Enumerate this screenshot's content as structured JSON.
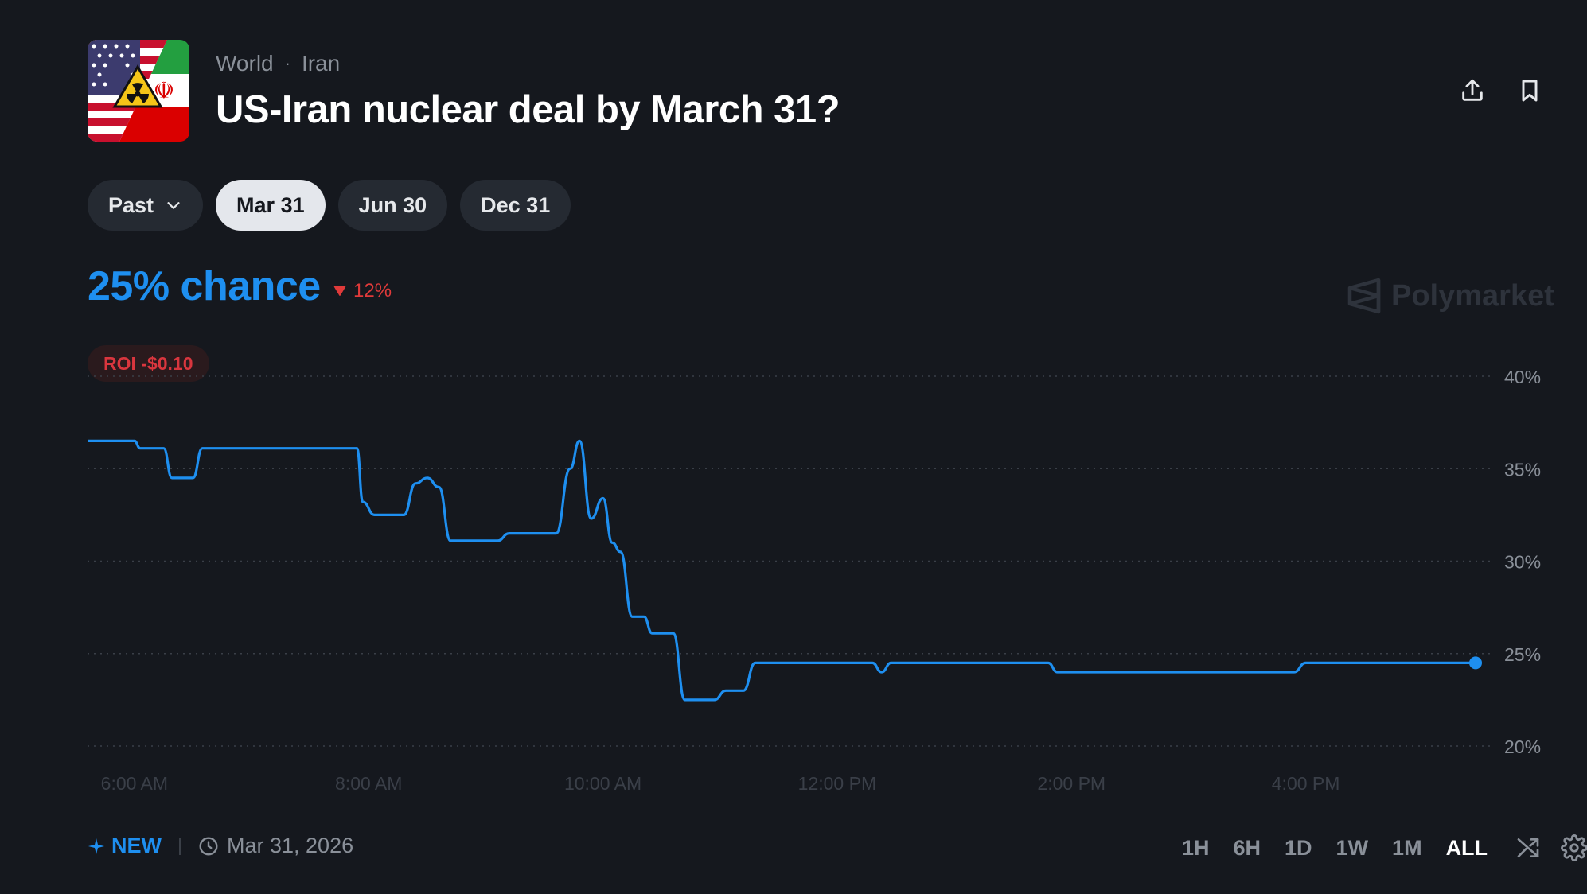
{
  "header": {
    "category": "World",
    "subcategory": "Iran",
    "title": "US-Iran nuclear deal by March 31?",
    "share_icon": "share-icon",
    "bookmark_icon": "bookmark-icon"
  },
  "tabs": [
    {
      "label": "Past",
      "has_dropdown": true,
      "active": false
    },
    {
      "label": "Mar 31",
      "active": true
    },
    {
      "label": "Jun 30",
      "active": false
    },
    {
      "label": "Dec 31",
      "active": false
    }
  ],
  "chance": {
    "value_text": "25% chance",
    "delta_text": "12%",
    "delta_direction": "down"
  },
  "watermark": "Polymarket",
  "roi_text": "ROI -$0.10",
  "colors": {
    "background": "#15181e",
    "accent": "#1e8ff0",
    "negative": "#e03a3a"
  },
  "chart_data": {
    "type": "line",
    "y_tick_labels": [
      "40%",
      "35%",
      "30%",
      "25%",
      "20%"
    ],
    "y_ticks": [
      40,
      35,
      30,
      25,
      20
    ],
    "ylim": [
      20,
      40
    ],
    "x_tick_labels": [
      "6:00 AM",
      "8:00 AM",
      "10:00 AM",
      "12:00 PM",
      "2:00 PM",
      "4:00 PM"
    ],
    "x_ticks_hours": [
      6,
      8,
      10,
      12,
      14,
      16
    ],
    "xlim_hours": [
      5.6,
      17.45
    ],
    "grid": true,
    "series": [
      {
        "color": "#1e8ff0",
        "points": [
          [
            5.6,
            36.5
          ],
          [
            6.0,
            36.5
          ],
          [
            6.05,
            36.1
          ],
          [
            6.25,
            36.1
          ],
          [
            6.32,
            34.5
          ],
          [
            6.5,
            34.5
          ],
          [
            6.58,
            36.1
          ],
          [
            7.9,
            36.1
          ],
          [
            7.95,
            33.2
          ],
          [
            8.05,
            32.5
          ],
          [
            8.3,
            32.5
          ],
          [
            8.4,
            34.2
          ],
          [
            8.5,
            34.5
          ],
          [
            8.6,
            34.0
          ],
          [
            8.7,
            31.1
          ],
          [
            9.1,
            31.1
          ],
          [
            9.2,
            31.5
          ],
          [
            9.6,
            31.5
          ],
          [
            9.72,
            35.0
          ],
          [
            9.8,
            36.5
          ],
          [
            9.9,
            32.3
          ],
          [
            10.0,
            33.4
          ],
          [
            10.08,
            31.0
          ],
          [
            10.15,
            30.5
          ],
          [
            10.25,
            27.0
          ],
          [
            10.35,
            27.0
          ],
          [
            10.42,
            26.1
          ],
          [
            10.6,
            26.1
          ],
          [
            10.7,
            22.5
          ],
          [
            10.95,
            22.5
          ],
          [
            11.05,
            23.0
          ],
          [
            11.2,
            23.0
          ],
          [
            11.3,
            24.5
          ],
          [
            12.3,
            24.5
          ],
          [
            12.38,
            24.0
          ],
          [
            12.46,
            24.5
          ],
          [
            13.8,
            24.5
          ],
          [
            13.88,
            24.0
          ],
          [
            15.9,
            24.0
          ],
          [
            16.0,
            24.5
          ],
          [
            17.45,
            24.5
          ]
        ]
      }
    ]
  },
  "footer": {
    "new_label": "NEW",
    "date": "Mar 31, 2026",
    "ranges": [
      "1H",
      "6H",
      "1D",
      "1W",
      "1M",
      "ALL"
    ],
    "active_range": "ALL"
  }
}
